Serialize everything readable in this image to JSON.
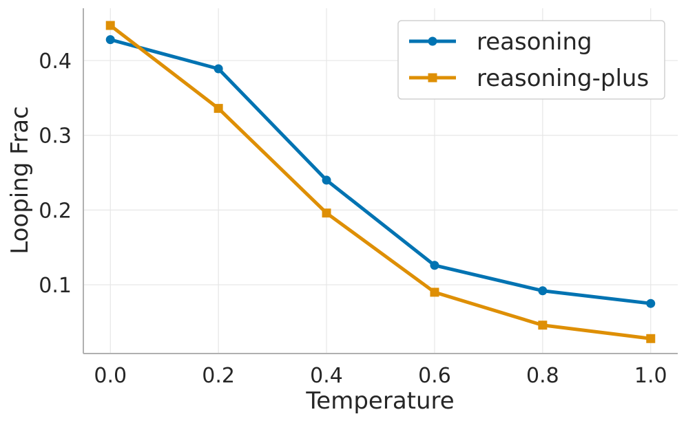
{
  "chart_data": {
    "type": "line",
    "title": "",
    "xlabel": "Temperature",
    "ylabel": "Looping Frac",
    "x": [
      0.0,
      0.2,
      0.4,
      0.6,
      0.8,
      1.0
    ],
    "xticks": [
      "0.0",
      "0.2",
      "0.4",
      "0.6",
      "0.8",
      "1.0"
    ],
    "yticks": [
      "0.1",
      "0.2",
      "0.3",
      "0.4"
    ],
    "xlim": [
      -0.05,
      1.05
    ],
    "ylim": [
      0.008,
      0.47
    ],
    "grid": true,
    "legend_position": "top-right",
    "series": [
      {
        "name": "reasoning",
        "marker": "circle",
        "color": "#0173B2",
        "values": [
          0.428,
          0.389,
          0.24,
          0.126,
          0.092,
          0.075
        ]
      },
      {
        "name": "reasoning-plus",
        "marker": "square",
        "color": "#DE8F05",
        "values": [
          0.447,
          0.336,
          0.196,
          0.09,
          0.046,
          0.028
        ]
      }
    ]
  }
}
